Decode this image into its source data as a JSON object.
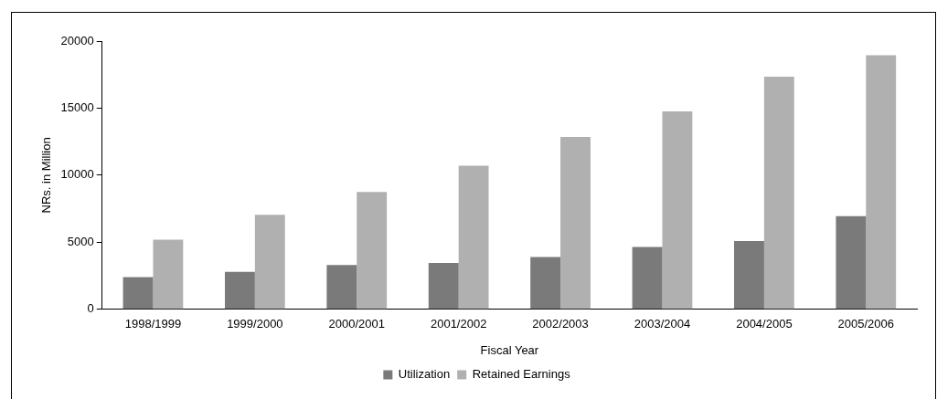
{
  "chart_data": {
    "type": "bar",
    "xlabel": "Fiscal Year",
    "ylabel": "NRs. in Million",
    "categories": [
      "1998/1999",
      "1999/2000",
      "2000/2001",
      "2001/2002",
      "2002/2003",
      "2003/2004",
      "2004/2005",
      "2005/2006"
    ],
    "series": [
      {
        "name": "Utilization",
        "color": "#7a7a7a",
        "values": [
          2400,
          2800,
          3300,
          3450,
          3900,
          4650,
          5100,
          6950
        ]
      },
      {
        "name": "Retained Earnings",
        "color": "#b0b0b0",
        "values": [
          5200,
          7050,
          8750,
          10700,
          12850,
          14750,
          17350,
          18950
        ]
      }
    ],
    "ylim": [
      0,
      20000
    ],
    "yticks": [
      0,
      5000,
      10000,
      15000,
      20000
    ],
    "grid": false,
    "legend": "bottom"
  }
}
